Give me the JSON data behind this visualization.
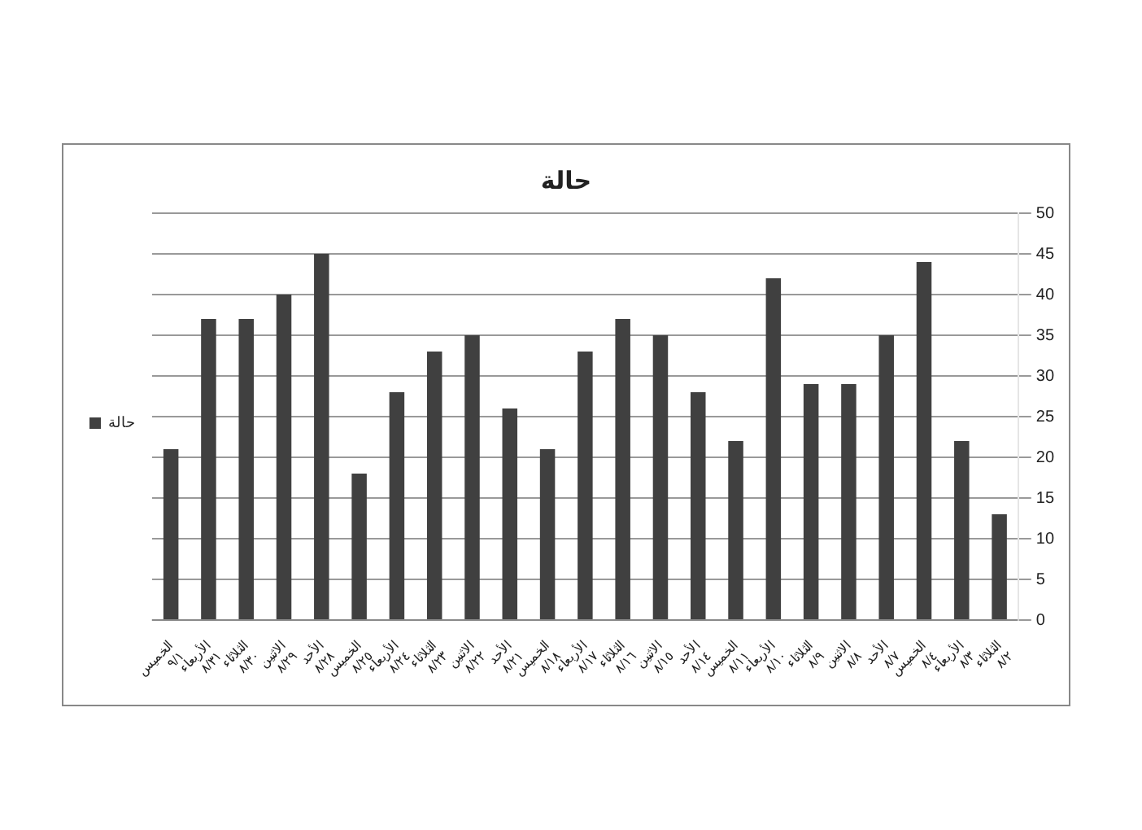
{
  "chart_data": {
    "type": "bar",
    "title": "حالة",
    "categories": [
      "الخميس\n٩/١",
      "الأربعاء\n٨/٣١",
      "الثلاثاء\n٨/٣٠",
      "الاثنين\n٨/٢٩",
      "الأحد\n٨/٢٨",
      "الخميس\n٨/٢٥",
      "الأربعاء\n٨/٢٤",
      "الثلاثاء\n٨/٢٣",
      "الاثنين\n٨/٢٢",
      "الأحد\n٨/٢١",
      "الخميس\n٨/١٨",
      "الأربعاء\n٨/١٧",
      "الثلاثاء\n٨/١٦",
      "الاثنين\n٨/١٥",
      "الأحد\n٨/١٤",
      "الخميس\n٨/١١",
      "الأربعاء\n٨/١٠",
      "الثلاثاء\n٨/٩",
      "الاثنين\n٨/٨",
      "الأحد\n٨/٧",
      "الخميس\n٨/٤",
      "الأربعاء\n٨/٣",
      "الثلاثاء\n٨/٢"
    ],
    "series": [
      {
        "name": "حالة",
        "color": "#404040",
        "values": [
          21,
          37,
          37,
          40,
          45,
          18,
          28,
          33,
          35,
          26,
          21,
          33,
          37,
          35,
          28,
          22,
          42,
          29,
          29,
          35,
          44,
          22,
          13
        ]
      }
    ],
    "ylim": [
      0,
      50
    ],
    "yticks": [
      0,
      5,
      10,
      15,
      20,
      25,
      30,
      35,
      40,
      45,
      50
    ],
    "grid": "y",
    "legend": "left"
  }
}
